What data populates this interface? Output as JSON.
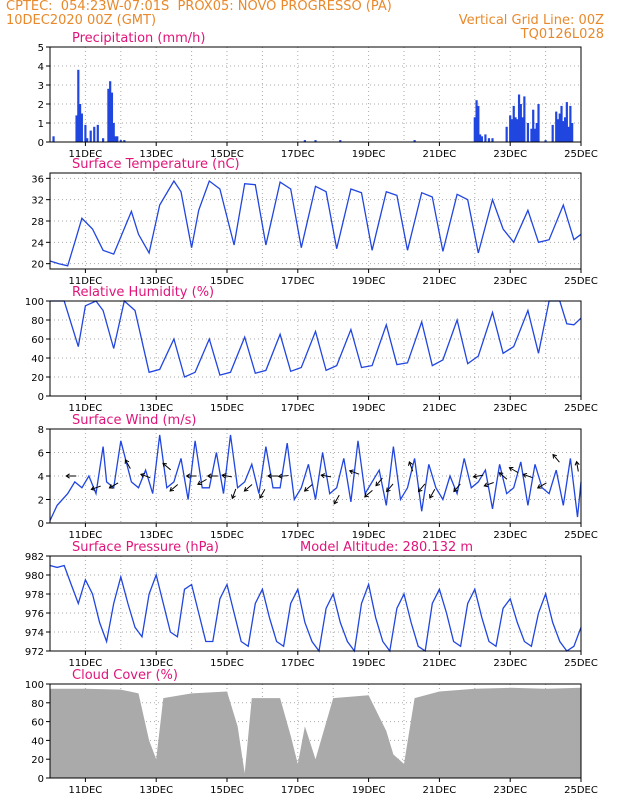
{
  "header": {
    "left1": "CPTEC:  054:23W-07:01S  PROX05: NOVO PROGRESSO (PA)",
    "left2": "10DEC2020 00Z (GMT)",
    "right1": "Vertical Grid Line: 00Z",
    "right2": "TQ0126L028"
  },
  "colors": {
    "header": "#e8892b",
    "title": "#e0157a",
    "line": "#2146e0",
    "bar": "#2146e0",
    "cloud": "#aaaaaa",
    "grid": "#aaaaaa"
  },
  "x_axis": {
    "ticks": [
      "11DEC",
      "13DEC",
      "15DEC",
      "17DEC",
      "19DEC",
      "21DEC",
      "23DEC",
      "25DEC"
    ],
    "start": "10DEC2020 00Z",
    "end": "25DEC2020 00Z"
  },
  "chart_data": [
    {
      "type": "bar",
      "title": "Precipitation (mm/h)",
      "ylim": [
        0,
        5
      ],
      "yticks": [
        0,
        1,
        2,
        3,
        4,
        5
      ],
      "x": [
        0.1,
        0.75,
        0.8,
        0.85,
        0.9,
        1.0,
        1.05,
        1.15,
        1.25,
        1.35,
        1.5,
        1.65,
        1.7,
        1.75,
        1.8,
        1.85,
        1.9,
        2.0,
        2.1,
        7.2,
        7.5,
        8.2,
        10.3,
        12.0,
        12.05,
        12.1,
        12.15,
        12.2,
        12.3,
        12.4,
        12.5,
        12.9,
        13.0,
        13.05,
        13.1,
        13.15,
        13.2,
        13.25,
        13.3,
        13.35,
        13.4,
        13.5,
        13.6,
        13.65,
        13.7,
        13.75,
        13.8,
        14.0,
        14.2,
        14.3,
        14.35,
        14.4,
        14.45,
        14.5,
        14.55,
        14.6,
        14.65,
        14.7,
        14.75
      ],
      "values": [
        0.3,
        1.4,
        3.8,
        2.0,
        1.5,
        0.9,
        0.2,
        0.6,
        0.8,
        0.9,
        0.2,
        2.8,
        3.2,
        2.6,
        1.0,
        0.3,
        0.3,
        0.1,
        0.1,
        0.1,
        0.1,
        0.1,
        0.1,
        1.3,
        2.2,
        1.9,
        0.4,
        0.3,
        0.4,
        0.2,
        0.2,
        0.8,
        1.4,
        1.2,
        1.9,
        1.3,
        1.2,
        2.5,
        2.0,
        1.3,
        2.4,
        1.0,
        0.7,
        1.7,
        0.7,
        1.0,
        2.0,
        0.1,
        0.9,
        1.6,
        1.2,
        1.5,
        1.9,
        1.1,
        1.3,
        2.1,
        0.8,
        1.9,
        1.0
      ]
    },
    {
      "type": "line",
      "title": "Surface Temperature (nC)",
      "ylim": [
        19,
        37
      ],
      "yticks": [
        20,
        24,
        28,
        32,
        36
      ],
      "x": [
        0,
        0.25,
        0.5,
        0.7,
        0.9,
        1.2,
        1.5,
        1.8,
        2.0,
        2.3,
        2.5,
        2.8,
        3.1,
        3.5,
        3.7,
        4.0,
        4.2,
        4.5,
        4.8,
        5.2,
        5.5,
        5.8,
        6.1,
        6.5,
        6.8,
        7.1,
        7.5,
        7.8,
        8.1,
        8.5,
        8.8,
        9.1,
        9.5,
        9.8,
        10.1,
        10.5,
        10.8,
        11.1,
        11.5,
        11.8,
        12.1,
        12.5,
        12.8,
        13.1,
        13.5,
        13.8,
        14.1,
        14.5,
        14.8,
        15.0
      ],
      "y": [
        20.5,
        20.0,
        19.6,
        24.0,
        28.5,
        26.5,
        22.5,
        21.8,
        25.0,
        29.8,
        25.5,
        22.0,
        31.0,
        35.5,
        33.5,
        23.0,
        30.0,
        35.5,
        34.0,
        23.5,
        35.0,
        34.8,
        23.5,
        35.3,
        34.0,
        23.0,
        34.5,
        33.5,
        22.8,
        34.0,
        33.3,
        22.5,
        33.5,
        32.8,
        22.5,
        33.3,
        32.5,
        22.3,
        33.0,
        32.0,
        22.0,
        32.0,
        26.5,
        24.0,
        30.0,
        24.0,
        24.5,
        31.0,
        24.5,
        25.5
      ]
    },
    {
      "type": "line",
      "title": "Relative Humidity (%)",
      "ylim": [
        0,
        100
      ],
      "yticks": [
        0,
        20,
        40,
        60,
        80,
        100
      ],
      "x": [
        0,
        0.4,
        0.8,
        1.0,
        1.3,
        1.5,
        1.8,
        2.1,
        2.4,
        2.8,
        3.1,
        3.5,
        3.8,
        4.1,
        4.5,
        4.8,
        5.1,
        5.5,
        5.8,
        6.1,
        6.5,
        6.8,
        7.1,
        7.5,
        7.8,
        8.1,
        8.5,
        8.8,
        9.1,
        9.5,
        9.8,
        10.1,
        10.5,
        10.8,
        11.1,
        11.5,
        11.8,
        12.1,
        12.5,
        12.8,
        13.1,
        13.5,
        13.8,
        14.1,
        14.4,
        14.6,
        14.8,
        15.0
      ],
      "y": [
        100,
        100,
        52,
        95,
        100,
        90,
        50,
        100,
        90,
        25,
        28,
        60,
        20,
        25,
        60,
        22,
        25,
        62,
        24,
        27,
        65,
        26,
        30,
        68,
        27,
        32,
        70,
        30,
        32,
        75,
        33,
        35,
        78,
        32,
        38,
        80,
        34,
        42,
        88,
        45,
        52,
        90,
        45,
        100,
        100,
        76,
        75,
        82
      ]
    },
    {
      "type": "line",
      "title": "Surface Wind (m/s)",
      "ylim": [
        0,
        8
      ],
      "yticks": [
        0,
        2,
        4,
        6,
        8
      ],
      "x": [
        0,
        0.2,
        0.5,
        0.7,
        0.9,
        1.1,
        1.3,
        1.5,
        1.6,
        1.8,
        2.0,
        2.3,
        2.5,
        2.7,
        2.9,
        3.1,
        3.3,
        3.5,
        3.7,
        3.9,
        4.1,
        4.3,
        4.5,
        4.7,
        4.9,
        5.1,
        5.3,
        5.5,
        5.7,
        5.9,
        6.1,
        6.3,
        6.5,
        6.7,
        6.9,
        7.1,
        7.3,
        7.5,
        7.7,
        7.9,
        8.1,
        8.3,
        8.5,
        8.7,
        8.9,
        9.1,
        9.3,
        9.5,
        9.7,
        9.9,
        10.1,
        10.3,
        10.5,
        10.7,
        10.9,
        11.1,
        11.3,
        11.5,
        11.7,
        11.9,
        12.1,
        12.3,
        12.5,
        12.7,
        12.9,
        13.1,
        13.3,
        13.5,
        13.7,
        13.9,
        14.1,
        14.3,
        14.5,
        14.7,
        14.9,
        15.0
      ],
      "y": [
        0.2,
        1.5,
        2.5,
        3.5,
        3.0,
        4.0,
        2.5,
        6.5,
        3.5,
        3.0,
        7.0,
        3.5,
        3.0,
        4.5,
        2.5,
        7.5,
        3.0,
        3.5,
        5.5,
        2.0,
        7.0,
        3.0,
        3.0,
        6.0,
        2.5,
        7.5,
        3.0,
        3.5,
        5.0,
        2.5,
        6.5,
        3.0,
        3.0,
        6.8,
        2.0,
        3.0,
        5.0,
        2.0,
        6.0,
        2.5,
        3.0,
        5.5,
        1.8,
        7.0,
        2.5,
        3.5,
        4.5,
        1.5,
        6.5,
        2.0,
        3.0,
        5.5,
        1.0,
        5.0,
        3.0,
        2.0,
        4.0,
        2.5,
        5.5,
        3.0,
        3.5,
        4.5,
        1.2,
        5.0,
        2.5,
        3.0,
        5.2,
        1.5,
        5.0,
        3.0,
        2.5,
        4.5,
        1.5,
        5.5,
        0.5,
        3.5
      ]
    },
    {
      "type": "line",
      "title": "Surface Pressure (hPa)",
      "annotation": "Model Altitude: 280.132 m",
      "ylim": [
        972,
        982
      ],
      "yticks": [
        972,
        974,
        976,
        978,
        980,
        982
      ],
      "x": [
        0,
        0.2,
        0.4,
        0.6,
        0.8,
        1.0,
        1.2,
        1.4,
        1.6,
        1.8,
        2.0,
        2.2,
        2.4,
        2.6,
        2.8,
        3.0,
        3.2,
        3.4,
        3.6,
        3.8,
        4.0,
        4.2,
        4.4,
        4.6,
        4.8,
        5.0,
        5.2,
        5.4,
        5.6,
        5.8,
        6.0,
        6.2,
        6.4,
        6.6,
        6.8,
        7.0,
        7.2,
        7.4,
        7.6,
        7.8,
        8.0,
        8.2,
        8.4,
        8.6,
        8.8,
        9.0,
        9.2,
        9.4,
        9.6,
        9.8,
        10.0,
        10.2,
        10.4,
        10.6,
        10.8,
        11.0,
        11.2,
        11.4,
        11.6,
        11.8,
        12.0,
        12.2,
        12.4,
        12.6,
        12.8,
        13.0,
        13.2,
        13.4,
        13.6,
        13.8,
        14.0,
        14.2,
        14.4,
        14.6,
        14.8,
        15.0
      ],
      "y": [
        981,
        980.8,
        981,
        979,
        977,
        979.5,
        978,
        975,
        973,
        977,
        979.8,
        977,
        974.5,
        973.5,
        978,
        980,
        977,
        974,
        973.5,
        978.5,
        979,
        976,
        973,
        973,
        977.5,
        979,
        976,
        973,
        972.5,
        977,
        978.5,
        975.5,
        973,
        972.5,
        977,
        978.5,
        975,
        973,
        972,
        976.5,
        978,
        975,
        973,
        972,
        977,
        979,
        975.5,
        973,
        972,
        976.5,
        978,
        975,
        972.5,
        972,
        977,
        978.5,
        976,
        973,
        972.5,
        977,
        978.5,
        975.5,
        973,
        972.5,
        976.5,
        977.5,
        975,
        973,
        972.5,
        976,
        978,
        975,
        973,
        972,
        972.5,
        974.5
      ]
    },
    {
      "type": "area",
      "title": "Cloud Cover (%)",
      "ylim": [
        0,
        100
      ],
      "yticks": [
        0,
        20,
        40,
        60,
        80,
        100
      ],
      "x": [
        0,
        1.0,
        2.0,
        2.5,
        2.8,
        3.0,
        3.2,
        4.0,
        5.0,
        5.3,
        5.5,
        5.7,
        6.5,
        6.8,
        7.0,
        7.2,
        7.5,
        8.0,
        9.0,
        9.5,
        9.7,
        10.0,
        10.3,
        11.0,
        12.0,
        13.0,
        14.0,
        15.0
      ],
      "y": [
        95,
        95,
        94,
        90,
        40,
        20,
        85,
        90,
        92,
        55,
        5,
        85,
        85,
        45,
        15,
        55,
        20,
        85,
        88,
        50,
        25,
        15,
        85,
        92,
        95,
        96,
        95,
        96
      ]
    }
  ]
}
